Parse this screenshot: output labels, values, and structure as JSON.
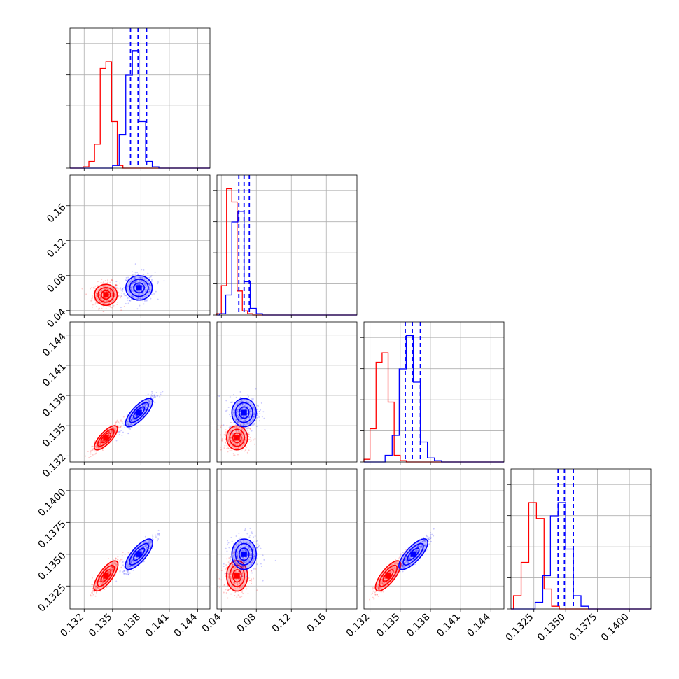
{
  "chart_data": {
    "type": "scatter",
    "title": "",
    "variables": [
      {
        "ticks": [
          "0.132",
          "0.135",
          "0.138",
          "0.141",
          "0.144"
        ],
        "range": [
          0.1305,
          0.1453
        ]
      },
      {
        "ticks": [
          "0.04",
          "0.08",
          "0.12",
          "0.16"
        ],
        "range": [
          0.035,
          0.195
        ]
      },
      {
        "ticks": [
          "0.132",
          "0.135",
          "0.138",
          "0.141",
          "0.144"
        ],
        "range": [
          0.1314,
          0.1453
        ]
      },
      {
        "ticks": [
          "0.1325",
          "0.1350",
          "0.1375",
          "0.1400"
        ],
        "range": [
          0.1307,
          0.1417
        ]
      }
    ],
    "grid": true,
    "series": [
      {
        "color": "#ff0000",
        "means": [
          0.1343,
          0.058,
          0.1338,
          0.1333
        ],
        "stds": [
          0.0006,
          0.006,
          0.0006,
          0.0006
        ],
        "hist": [
          [
            0.01,
            0.05,
            0.18,
            0.75,
            0.8,
            0.35,
            0.02,
            0.0
          ],
          [
            0.01,
            0.22,
            0.95,
            0.85,
            0.18,
            0.03,
            0.01,
            0.0
          ],
          [
            0.02,
            0.25,
            0.75,
            0.82,
            0.45,
            0.05,
            0.01,
            0.0
          ],
          [
            0.1,
            0.35,
            0.8,
            0.68,
            0.15,
            0.02,
            0.0,
            0.0
          ]
        ]
      },
      {
        "color": "#0000ff",
        "means": [
          0.1378,
          0.066,
          0.1363,
          0.135
        ],
        "stds": [
          0.0007,
          0.007,
          0.0007,
          0.0006
        ],
        "hist": [
          [
            0.02,
            0.25,
            0.7,
            0.88,
            0.35,
            0.05,
            0.01,
            0.0
          ],
          [
            0.01,
            0.15,
            0.7,
            0.78,
            0.25,
            0.05,
            0.01,
            0.0
          ],
          [
            0.05,
            0.2,
            0.7,
            0.95,
            0.6,
            0.15,
            0.03,
            0.01
          ],
          [
            0.05,
            0.25,
            0.7,
            0.8,
            0.45,
            0.1,
            0.02,
            0.0
          ]
        ],
        "quantiles": [
          [
            0.1369,
            0.1377,
            0.1386
          ],
          [
            0.06,
            0.066,
            0.072
          ],
          [
            0.1355,
            0.1362,
            0.137
          ],
          [
            0.1344,
            0.1349,
            0.1356
          ]
        ]
      }
    ]
  }
}
